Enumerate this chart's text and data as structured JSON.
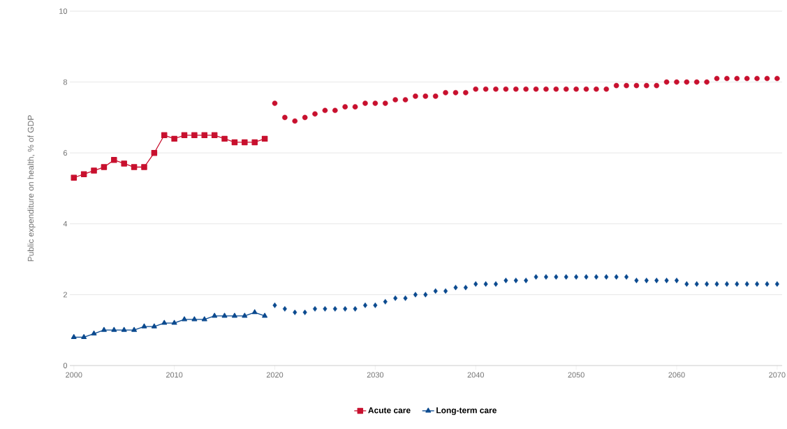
{
  "chart_data": {
    "type": "line",
    "ylabel": "Public expenditure on health, % of GDP",
    "xlim": [
      1999.6,
      2070.5
    ],
    "xticks": [
      2000,
      2010,
      2020,
      2030,
      2040,
      2050,
      2060,
      2070
    ],
    "ylim": [
      0,
      10
    ],
    "yticks": [
      0,
      2,
      4,
      6,
      8,
      10
    ],
    "grid": "y",
    "legend": "bottom",
    "series": [
      {
        "name": "Acute care",
        "marker": "square",
        "color": "#c8102e",
        "x": [
          2000,
          2001,
          2002,
          2003,
          2004,
          2005,
          2006,
          2007,
          2008,
          2009,
          2010,
          2011,
          2012,
          2013,
          2014,
          2015,
          2016,
          2017,
          2018,
          2019
        ],
        "values": [
          5.3,
          5.4,
          5.5,
          5.6,
          5.8,
          5.7,
          5.6,
          5.6,
          6.0,
          6.5,
          6.4,
          6.5,
          6.5,
          6.5,
          6.5,
          6.4,
          6.3,
          6.3,
          6.3,
          6.4
        ]
      },
      {
        "name": "Long-term care",
        "marker": "triangle",
        "color": "#0b4a8f",
        "x": [
          2000,
          2001,
          2002,
          2003,
          2004,
          2005,
          2006,
          2007,
          2008,
          2009,
          2010,
          2011,
          2012,
          2013,
          2014,
          2015,
          2016,
          2017,
          2018,
          2019
        ],
        "values": [
          0.8,
          0.8,
          0.9,
          1.0,
          1.0,
          1.0,
          1.0,
          1.1,
          1.1,
          1.2,
          1.2,
          1.3,
          1.3,
          1.3,
          1.4,
          1.4,
          1.4,
          1.4,
          1.5,
          1.4
        ]
      },
      {
        "type": "scatter",
        "marker": "circle",
        "color": "#c8102e",
        "x": [
          2020,
          2021,
          2022,
          2023,
          2024,
          2025,
          2026,
          2027,
          2028,
          2029,
          2030,
          2031,
          2032,
          2033,
          2034,
          2035,
          2036,
          2037,
          2038,
          2039,
          2040,
          2041,
          2042,
          2043,
          2044,
          2045,
          2046,
          2047,
          2048,
          2049,
          2050,
          2051,
          2052,
          2053,
          2054,
          2055,
          2056,
          2057,
          2058,
          2059,
          2060,
          2061,
          2062,
          2063,
          2064,
          2065,
          2066,
          2067,
          2068,
          2069,
          2070
        ],
        "values": [
          7.4,
          7.0,
          6.9,
          7.0,
          7.1,
          7.2,
          7.2,
          7.3,
          7.3,
          7.4,
          7.4,
          7.4,
          7.5,
          7.5,
          7.6,
          7.6,
          7.6,
          7.7,
          7.7,
          7.7,
          7.8,
          7.8,
          7.8,
          7.8,
          7.8,
          7.8,
          7.8,
          7.8,
          7.8,
          7.8,
          7.8,
          7.8,
          7.8,
          7.8,
          7.9,
          7.9,
          7.9,
          7.9,
          7.9,
          8.0,
          8.0,
          8.0,
          8.0,
          8.0,
          8.1,
          8.1,
          8.1,
          8.1,
          8.1,
          8.1,
          8.1
        ]
      },
      {
        "type": "scatter",
        "marker": "diamond",
        "color": "#0b4a8f",
        "x": [
          2020,
          2021,
          2022,
          2023,
          2024,
          2025,
          2026,
          2027,
          2028,
          2029,
          2030,
          2031,
          2032,
          2033,
          2034,
          2035,
          2036,
          2037,
          2038,
          2039,
          2040,
          2041,
          2042,
          2043,
          2044,
          2045,
          2046,
          2047,
          2048,
          2049,
          2050,
          2051,
          2052,
          2053,
          2054,
          2055,
          2056,
          2057,
          2058,
          2059,
          2060,
          2061,
          2062,
          2063,
          2064,
          2065,
          2066,
          2067,
          2068,
          2069,
          2070
        ],
        "values": [
          1.7,
          1.6,
          1.5,
          1.5,
          1.6,
          1.6,
          1.6,
          1.6,
          1.6,
          1.7,
          1.7,
          1.8,
          1.9,
          1.9,
          2.0,
          2.0,
          2.1,
          2.1,
          2.2,
          2.2,
          2.3,
          2.3,
          2.3,
          2.4,
          2.4,
          2.4,
          2.5,
          2.5,
          2.5,
          2.5,
          2.5,
          2.5,
          2.5,
          2.5,
          2.5,
          2.5,
          2.4,
          2.4,
          2.4,
          2.4,
          2.4,
          2.3,
          2.3,
          2.3,
          2.3,
          2.3,
          2.3,
          2.3,
          2.3,
          2.3,
          2.3
        ]
      }
    ]
  }
}
